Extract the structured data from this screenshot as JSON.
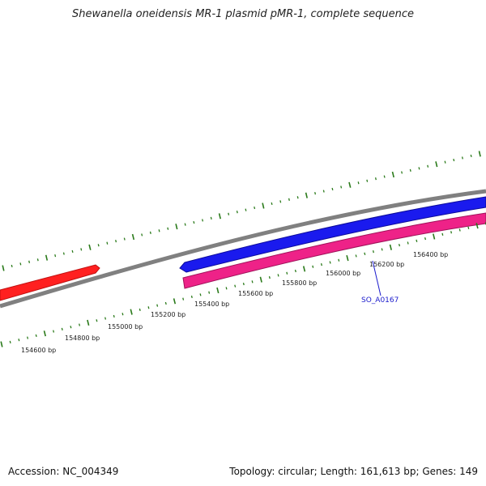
{
  "title": "Shewanella oneidensis MR-1 plasmid pMR-1, complete sequence",
  "footer": {
    "accession": "Accession: NC_004349",
    "summary": "Topology: circular; Length: 161,613 bp; Genes: 149"
  },
  "colors": {
    "backbone": "#808080",
    "forward_feature": "#1a1aee",
    "reverse_feature": "#ee2288",
    "other_feature": "#ff2020",
    "ticks": "#2a7a1a",
    "gene_label": "#1a1acc"
  },
  "scale": {
    "labels": [
      "154600 bp",
      "154800 bp",
      "155000 bp",
      "155200 bp",
      "155400 bp",
      "155600 bp",
      "155800 bp",
      "156000 bp",
      "156200 bp",
      "156400 bp"
    ]
  },
  "gene_labels": [
    "SO_A0167"
  ]
}
